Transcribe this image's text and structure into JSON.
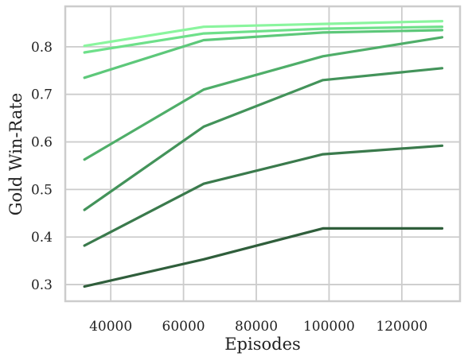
{
  "chart_data": {
    "type": "line",
    "title": "",
    "xlabel": "Episodes",
    "ylabel": "Gold Win-Rate",
    "xlim": [
      27500,
      136000
    ],
    "ylim": [
      0.265,
      0.885
    ],
    "grid": true,
    "legend": "none",
    "x_ticks": [
      40000,
      60000,
      80000,
      100000,
      120000
    ],
    "x_tick_labels": [
      "40000",
      "60000",
      "80000",
      "100000",
      "120000"
    ],
    "y_ticks": [
      0.3,
      0.4,
      0.5,
      0.6,
      0.7,
      0.8
    ],
    "y_tick_labels": [
      "0.3",
      "0.4",
      "0.5",
      "0.6",
      "0.7",
      "0.8"
    ],
    "x": [
      32768,
      65536,
      98304,
      131072
    ],
    "series": [
      {
        "color": "#2f5e3b",
        "values": [
          0.296,
          0.353,
          0.418,
          0.418
        ]
      },
      {
        "color": "#3a7a4c",
        "values": [
          0.382,
          0.512,
          0.574,
          0.592
        ]
      },
      {
        "color": "#43935a",
        "values": [
          0.457,
          0.632,
          0.73,
          0.755
        ]
      },
      {
        "color": "#4fae69",
        "values": [
          0.563,
          0.71,
          0.78,
          0.82
        ]
      },
      {
        "color": "#5dc87a",
        "values": [
          0.735,
          0.814,
          0.83,
          0.835
        ]
      },
      {
        "color": "#6ee08a",
        "values": [
          0.788,
          0.828,
          0.838,
          0.842
        ]
      },
      {
        "color": "#8af59e",
        "values": [
          0.802,
          0.842,
          0.848,
          0.854
        ]
      }
    ]
  }
}
